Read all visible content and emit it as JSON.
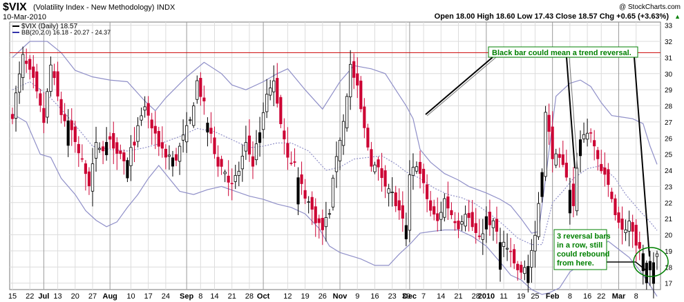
{
  "header": {
    "symbol": "$VIX",
    "description": "(Volatility Index - New Methodology)",
    "exchange": "INDX",
    "date": "10-Mar-2010",
    "copyright": "@ StockCharts.com",
    "ohlc": "Open 18.00  High 18.60  Low 17.43  Close 18.57  Chg +0.65 (+3.63%)",
    "chg_arrow": "▲"
  },
  "legend": {
    "price_label": "$VIX (Daily) 18.57",
    "bb_label": "BB(20,2.0) 16.18 - 20.27 - 24.37"
  },
  "annotations": {
    "top_note": "Black bar could mean a trend reversal.",
    "bottom_note": [
      "3 reversal bars",
      "in a row, still",
      "could rebound",
      "from here."
    ]
  },
  "colors": {
    "up": "#000000",
    "down": "#cc0033",
    "band": "#8f8fc8",
    "mid": "#8f8fc8",
    "resistance": "#cc0000",
    "grid": "#dcdcdc",
    "note_text": "#008000",
    "note_border": "#008000"
  },
  "chart_data": {
    "type": "candlestick",
    "resistance_level": 31.3,
    "ylim": [
      16.6,
      33.2
    ],
    "y_ticks": [
      17,
      18,
      19,
      20,
      21,
      22,
      23,
      24,
      25,
      26,
      27,
      28,
      29,
      30,
      31,
      32,
      33
    ],
    "x_ticks": [
      {
        "label": "15",
        "i": 0
      },
      {
        "label": "22",
        "i": 5
      },
      {
        "label": "Jul",
        "i": 9,
        "major": true
      },
      {
        "label": "13",
        "i": 13
      },
      {
        "label": "20",
        "i": 18
      },
      {
        "label": "27",
        "i": 23
      },
      {
        "label": "Aug",
        "i": 28,
        "major": true
      },
      {
        "label": "10",
        "i": 34
      },
      {
        "label": "17",
        "i": 39
      },
      {
        "label": "24",
        "i": 44
      },
      {
        "label": "Sep",
        "i": 50,
        "major": true
      },
      {
        "label": "8",
        "i": 54
      },
      {
        "label": "14",
        "i": 58
      },
      {
        "label": "21",
        "i": 63
      },
      {
        "label": "28",
        "i": 68
      },
      {
        "label": "Oct",
        "i": 72,
        "major": true
      },
      {
        "label": "12",
        "i": 79
      },
      {
        "label": "19",
        "i": 84
      },
      {
        "label": "26",
        "i": 89
      },
      {
        "label": "Nov",
        "i": 94,
        "major": true
      },
      {
        "label": "9",
        "i": 99
      },
      {
        "label": "16",
        "i": 104
      },
      {
        "label": "23",
        "i": 109
      },
      {
        "label": "30",
        "i": 113
      },
      {
        "label": "Dec",
        "i": 114,
        "major": true
      },
      {
        "label": "7",
        "i": 118
      },
      {
        "label": "14",
        "i": 123
      },
      {
        "label": "21",
        "i": 128
      },
      {
        "label": "28",
        "i": 133
      },
      {
        "label": "2010",
        "i": 136,
        "major": true
      },
      {
        "label": "11",
        "i": 141
      },
      {
        "label": "19",
        "i": 146
      },
      {
        "label": "25",
        "i": 150
      },
      {
        "label": "Feb",
        "i": 155,
        "major": true
      },
      {
        "label": "8",
        "i": 160
      },
      {
        "label": "16",
        "i": 165
      },
      {
        "label": "22",
        "i": 169
      },
      {
        "label": "Mar",
        "i": 174,
        "major": true
      },
      {
        "label": "8",
        "i": 179
      }
    ],
    "anchors": [
      [
        0,
        27.5
      ],
      [
        3,
        31
      ],
      [
        6,
        29.5
      ],
      [
        9,
        27
      ],
      [
        11,
        30.5
      ],
      [
        14,
        27.5
      ],
      [
        17,
        26.5
      ],
      [
        20,
        24.5
      ],
      [
        22,
        23.2
      ],
      [
        24,
        25.5
      ],
      [
        26,
        25.5
      ],
      [
        28,
        26
      ],
      [
        31,
        25
      ],
      [
        33,
        24.5
      ],
      [
        36,
        26.5
      ],
      [
        38,
        28
      ],
      [
        41,
        26
      ],
      [
        44,
        25
      ],
      [
        47,
        24.8
      ],
      [
        49,
        26
      ],
      [
        51,
        27
      ],
      [
        53,
        29.5
      ],
      [
        55,
        28
      ],
      [
        57,
        26
      ],
      [
        59,
        24.5
      ],
      [
        61,
        24
      ],
      [
        63,
        23
      ],
      [
        65,
        24
      ],
      [
        67,
        25.5
      ],
      [
        69,
        24.5
      ],
      [
        71,
        26.5
      ],
      [
        73,
        28.5
      ],
      [
        75,
        29.5
      ],
      [
        77,
        27
      ],
      [
        79,
        25
      ],
      [
        81,
        24.3
      ],
      [
        83,
        23
      ],
      [
        85,
        22
      ],
      [
        87,
        21
      ],
      [
        89,
        20.3
      ],
      [
        91,
        21.5
      ],
      [
        93,
        25
      ],
      [
        95,
        27
      ],
      [
        97,
        30.5
      ],
      [
        99,
        29
      ],
      [
        101,
        26.5
      ],
      [
        103,
        24.5
      ],
      [
        105,
        24
      ],
      [
        107,
        23.3
      ],
      [
        109,
        22.5
      ],
      [
        111,
        21.3
      ],
      [
        113,
        20.3
      ],
      [
        114,
        23.5
      ],
      [
        116,
        24.5
      ],
      [
        118,
        23
      ],
      [
        120,
        21.5
      ],
      [
        122,
        20.8
      ],
      [
        124,
        22.2
      ],
      [
        126,
        21.3
      ],
      [
        128,
        20.6
      ],
      [
        130,
        21.5
      ],
      [
        132,
        20.5
      ],
      [
        134,
        19.6
      ],
      [
        136,
        21
      ],
      [
        138,
        20.6
      ],
      [
        140,
        19.8
      ],
      [
        142,
        19.2
      ],
      [
        144,
        18.2
      ],
      [
        146,
        17.5
      ],
      [
        148,
        18.3
      ],
      [
        150,
        19.7
      ],
      [
        152,
        24
      ],
      [
        153,
        27.5
      ],
      [
        155,
        25
      ],
      [
        157,
        24.5
      ],
      [
        159,
        23.8
      ],
      [
        161,
        22
      ],
      [
        163,
        26
      ],
      [
        165,
        26.5
      ],
      [
        167,
        25.5
      ],
      [
        169,
        24
      ],
      [
        171,
        23
      ],
      [
        173,
        21.5
      ],
      [
        175,
        20.2
      ],
      [
        177,
        20.8
      ],
      [
        179,
        19.2
      ],
      [
        181,
        18.6
      ],
      [
        182,
        18.1
      ],
      [
        183,
        18.2
      ],
      [
        184,
        18.57
      ]
    ],
    "upper_band": [
      [
        0,
        31
      ],
      [
        5,
        32
      ],
      [
        10,
        32
      ],
      [
        14,
        31.3
      ],
      [
        18,
        30.2
      ],
      [
        23,
        29.8
      ],
      [
        28,
        29.6
      ],
      [
        33,
        29.5
      ],
      [
        38,
        28.3
      ],
      [
        41,
        27.7
      ],
      [
        44,
        28.5
      ],
      [
        50,
        29.8
      ],
      [
        55,
        30.7
      ],
      [
        60,
        30
      ],
      [
        63,
        29.3
      ],
      [
        67,
        29
      ],
      [
        72,
        29.5
      ],
      [
        76,
        30
      ],
      [
        79,
        30.3
      ],
      [
        84,
        29
      ],
      [
        89,
        27.8
      ],
      [
        94,
        29.5
      ],
      [
        98,
        30.5
      ],
      [
        103,
        30.3
      ],
      [
        107,
        30
      ],
      [
        110,
        29
      ],
      [
        113,
        28
      ],
      [
        115,
        27.2
      ],
      [
        117,
        25.3
      ],
      [
        120,
        24.5
      ],
      [
        124,
        23.8
      ],
      [
        128,
        23.4
      ],
      [
        131,
        23
      ],
      [
        136,
        22.6
      ],
      [
        140,
        22.2
      ],
      [
        143,
        21.8
      ],
      [
        146,
        21
      ],
      [
        149,
        20.1
      ],
      [
        151,
        20.2
      ],
      [
        153,
        23.5
      ],
      [
        156,
        28.6
      ],
      [
        160,
        29.4
      ],
      [
        163,
        29.6
      ],
      [
        166,
        29.2
      ],
      [
        169,
        28.2
      ],
      [
        172,
        27.4
      ],
      [
        175,
        27.3
      ],
      [
        178,
        27.2
      ],
      [
        181,
        26.9
      ],
      [
        183,
        25.5
      ],
      [
        185,
        24.37
      ]
    ],
    "lower_band": [
      [
        0,
        27.5
      ],
      [
        4,
        27
      ],
      [
        8,
        25
      ],
      [
        11,
        24.8
      ],
      [
        14,
        23.5
      ],
      [
        18,
        22.5
      ],
      [
        21,
        21.5
      ],
      [
        24,
        20.9
      ],
      [
        27,
        20.5
      ],
      [
        30,
        20.8
      ],
      [
        33,
        21.7
      ],
      [
        36,
        22.5
      ],
      [
        39,
        23.5
      ],
      [
        42,
        24.3
      ],
      [
        45,
        23.5
      ],
      [
        48,
        22.7
      ],
      [
        52,
        22.5
      ],
      [
        56,
        22.8
      ],
      [
        60,
        23
      ],
      [
        64,
        22.7
      ],
      [
        68,
        22.4
      ],
      [
        72,
        22.2
      ],
      [
        76,
        21.9
      ],
      [
        80,
        21.7
      ],
      [
        84,
        21.3
      ],
      [
        88,
        20.4
      ],
      [
        91,
        19.3
      ],
      [
        94,
        18.9
      ],
      [
        97,
        18.7
      ],
      [
        100,
        18.5
      ],
      [
        104,
        18.1
      ],
      [
        108,
        18.1
      ],
      [
        111,
        18.8
      ],
      [
        114,
        19.4
      ],
      [
        117,
        20.1
      ],
      [
        120,
        20.2
      ],
      [
        124,
        20.3
      ],
      [
        128,
        20.3
      ],
      [
        132,
        19.9
      ],
      [
        136,
        19.3
      ],
      [
        140,
        18.3
      ],
      [
        143,
        17.5
      ],
      [
        146,
        17.2
      ],
      [
        149,
        16.6
      ],
      [
        152,
        16.3
      ],
      [
        154,
        16.4
      ],
      [
        157,
        16.7
      ],
      [
        160,
        17.7
      ],
      [
        164,
        18.3
      ],
      [
        168,
        19.2
      ],
      [
        171,
        19.6
      ],
      [
        174,
        19.1
      ],
      [
        177,
        18.6
      ],
      [
        180,
        17.8
      ],
      [
        182,
        17.2
      ],
      [
        185,
        16.18
      ]
    ],
    "mid_band": [
      [
        0,
        29
      ],
      [
        5,
        29.5
      ],
      [
        10,
        28.7
      ],
      [
        14,
        27.8
      ],
      [
        18,
        26.8
      ],
      [
        23,
        25.5
      ],
      [
        28,
        25.3
      ],
      [
        33,
        25.2
      ],
      [
        38,
        25.4
      ],
      [
        43,
        25.7
      ],
      [
        48,
        26.1
      ],
      [
        53,
        26.6
      ],
      [
        58,
        26.4
      ],
      [
        63,
        25.9
      ],
      [
        68,
        25.4
      ],
      [
        72,
        25.5
      ],
      [
        76,
        25.7
      ],
      [
        80,
        25.7
      ],
      [
        85,
        25.2
      ],
      [
        90,
        24
      ],
      [
        94,
        24.2
      ],
      [
        98,
        24.7
      ],
      [
        102,
        24.8
      ],
      [
        106,
        24.9
      ],
      [
        110,
        24.4
      ],
      [
        113,
        23.9
      ],
      [
        117,
        23.5
      ],
      [
        121,
        22.9
      ],
      [
        125,
        22.5
      ],
      [
        129,
        22.3
      ],
      [
        133,
        21.9
      ],
      [
        137,
        21.3
      ],
      [
        141,
        20.6
      ],
      [
        145,
        19.8
      ],
      [
        149,
        19.4
      ],
      [
        152,
        19.4
      ],
      [
        155,
        22
      ],
      [
        158,
        22.7
      ],
      [
        161,
        23.5
      ],
      [
        165,
        24.1
      ],
      [
        169,
        24.3
      ],
      [
        173,
        23.5
      ],
      [
        176,
        22.5
      ],
      [
        180,
        21.5
      ],
      [
        183,
        20.8
      ],
      [
        185,
        20.27
      ]
    ]
  }
}
